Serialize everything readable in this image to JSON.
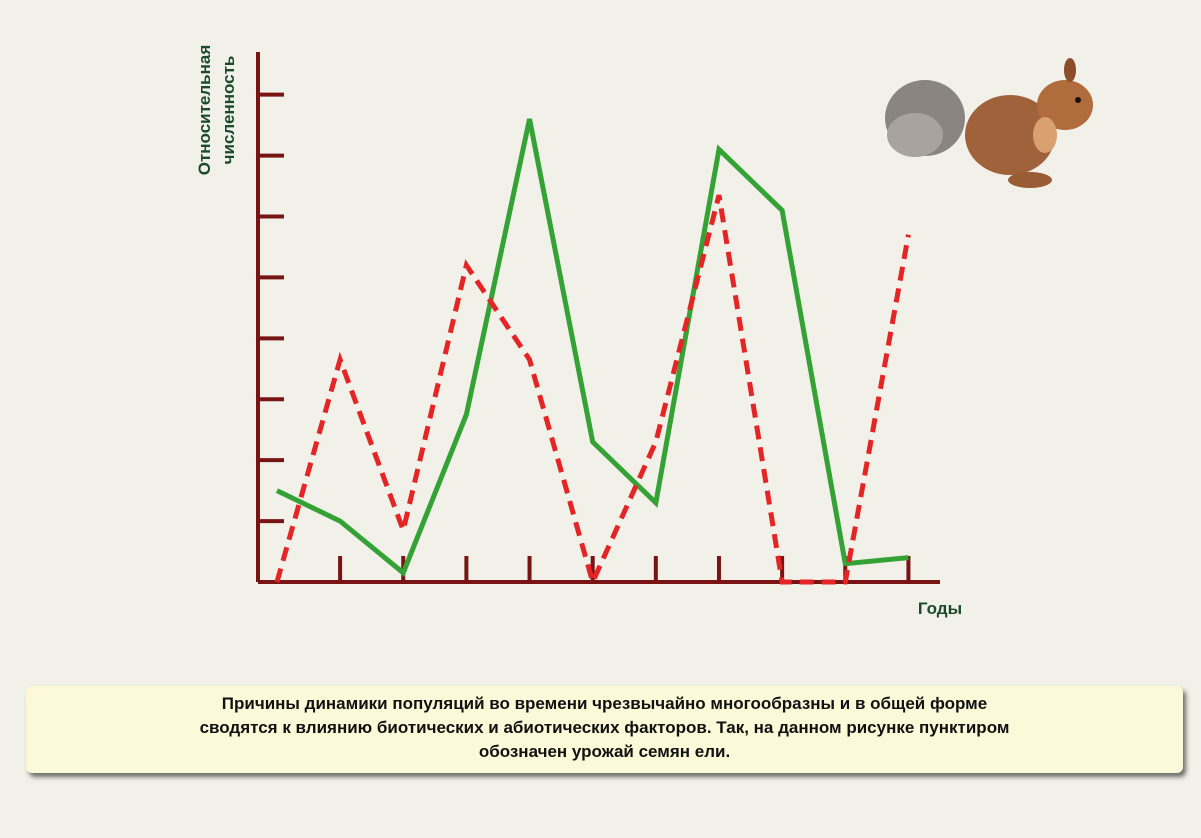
{
  "chart_data": {
    "type": "line",
    "ylabel": [
      "Относительная",
      "численность"
    ],
    "xlabel": "Годы",
    "x": [
      0,
      1,
      2,
      3,
      4,
      5,
      6,
      7,
      8,
      9,
      10
    ],
    "series": [
      {
        "color": "#35a235",
        "style": "solid",
        "values": [
          1.5,
          1.0,
          0.15,
          2.75,
          7.6,
          2.3,
          1.3,
          7.1,
          6.1,
          0.3,
          0.4
        ]
      },
      {
        "color": "#e52525",
        "style": "dashed",
        "values": [
          0,
          3.65,
          0.85,
          5.2,
          3.65,
          0,
          2.3,
          6.35,
          0,
          0,
          5.7
        ]
      }
    ],
    "xlim": [
      -0.3,
      10.5
    ],
    "ylim": [
      0,
      8.7
    ],
    "xticks": [
      1,
      2,
      3,
      4,
      5,
      6,
      7,
      8,
      9,
      10
    ],
    "yticks": [
      1,
      2,
      3,
      4,
      5,
      6,
      7,
      8
    ],
    "axis_color": "#7a1414"
  },
  "caption_lines": [
    "Причины динамики популяций во времени чрезвычайно многообразны и в общей форме",
    "сводятся к влиянию биотических и абиотических факторов. Так, на данном рисунке пунктиром",
    "обозначен урожай семян ели."
  ]
}
